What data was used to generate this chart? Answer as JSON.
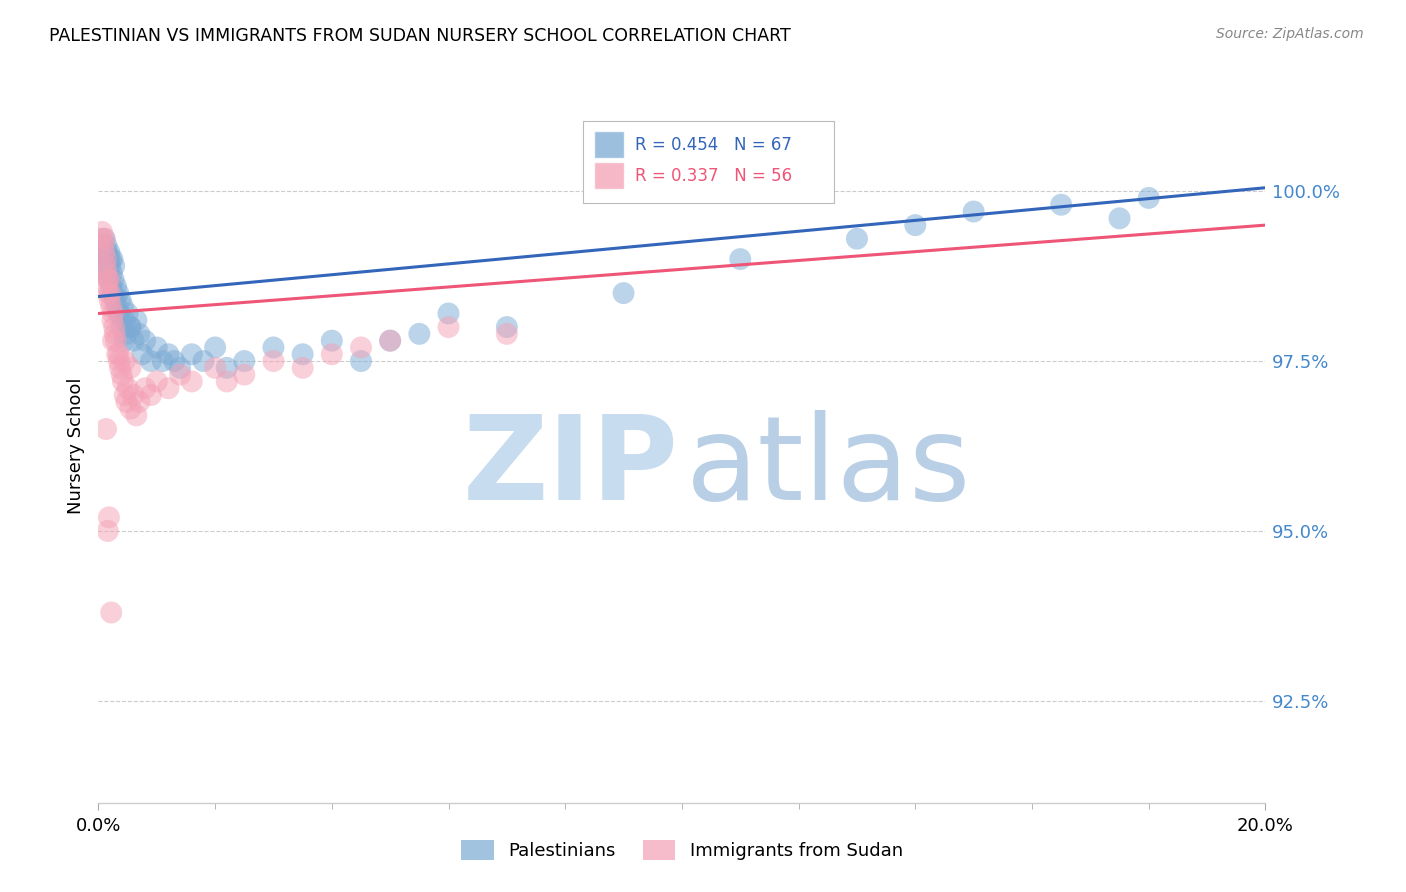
{
  "title": "PALESTINIAN VS IMMIGRANTS FROM SUDAN NURSERY SCHOOL CORRELATION CHART",
  "source": "Source: ZipAtlas.com",
  "ylabel": "Nursery School",
  "yticks": [
    92.5,
    95.0,
    97.5,
    100.0
  ],
  "ytick_labels": [
    "92.5%",
    "95.0%",
    "97.5%",
    "100.0%"
  ],
  "xlim": [
    0.0,
    20.0
  ],
  "ylim": [
    91.0,
    101.5
  ],
  "blue_R": 0.454,
  "blue_N": 67,
  "pink_R": 0.337,
  "pink_N": 56,
  "blue_color": "#7BAAD4",
  "pink_color": "#F4A0B5",
  "blue_line_color": "#3366BB",
  "pink_line_color": "#EE5577",
  "legend_label_blue": "Palestinians",
  "legend_label_pink": "Immigrants from Sudan",
  "blue_x": [
    0.05,
    0.08,
    0.1,
    0.11,
    0.12,
    0.13,
    0.14,
    0.15,
    0.16,
    0.17,
    0.18,
    0.19,
    0.2,
    0.21,
    0.22,
    0.23,
    0.24,
    0.25,
    0.26,
    0.27,
    0.28,
    0.3,
    0.32,
    0.34,
    0.36,
    0.38,
    0.4,
    0.42,
    0.45,
    0.48,
    0.5,
    0.55,
    0.6,
    0.65,
    0.7,
    0.75,
    0.8,
    0.9,
    1.0,
    1.1,
    1.2,
    1.4,
    1.6,
    1.8,
    2.0,
    2.2,
    2.5,
    3.0,
    3.5,
    4.0,
    4.5,
    5.0,
    5.5,
    7.0,
    9.0,
    11.0,
    13.0,
    14.0,
    15.0,
    16.5,
    17.5,
    18.0,
    1.3,
    0.35,
    0.45,
    0.55,
    6.0
  ],
  "blue_y": [
    99.2,
    99.0,
    99.3,
    99.1,
    98.9,
    99.0,
    99.2,
    99.1,
    98.8,
    99.0,
    98.7,
    99.1,
    98.9,
    99.0,
    98.6,
    98.8,
    99.0,
    98.5,
    98.7,
    98.9,
    98.4,
    98.6,
    98.3,
    98.5,
    98.2,
    98.4,
    98.0,
    98.3,
    98.1,
    97.9,
    98.2,
    98.0,
    97.8,
    98.1,
    97.9,
    97.6,
    97.8,
    97.5,
    97.7,
    97.5,
    97.6,
    97.4,
    97.6,
    97.5,
    97.7,
    97.4,
    97.5,
    97.7,
    97.6,
    97.8,
    97.5,
    97.8,
    97.9,
    98.0,
    98.5,
    99.0,
    99.3,
    99.5,
    99.7,
    99.8,
    99.6,
    99.9,
    97.5,
    98.2,
    97.8,
    98.0,
    98.2
  ],
  "pink_x": [
    0.04,
    0.06,
    0.08,
    0.1,
    0.11,
    0.12,
    0.13,
    0.14,
    0.15,
    0.16,
    0.17,
    0.18,
    0.19,
    0.2,
    0.22,
    0.24,
    0.25,
    0.27,
    0.28,
    0.3,
    0.32,
    0.35,
    0.37,
    0.4,
    0.42,
    0.45,
    0.48,
    0.5,
    0.55,
    0.6,
    0.65,
    0.7,
    0.8,
    0.9,
    1.0,
    1.2,
    1.4,
    1.6,
    2.0,
    2.5,
    3.0,
    3.5,
    4.0,
    4.5,
    5.0,
    6.0,
    7.0,
    0.25,
    0.35,
    0.45,
    0.55,
    2.2,
    0.13,
    0.16,
    0.18,
    0.22
  ],
  "pink_y": [
    99.3,
    99.4,
    99.2,
    99.1,
    99.3,
    98.9,
    99.0,
    98.8,
    98.6,
    98.7,
    98.5,
    98.7,
    98.4,
    98.5,
    98.3,
    98.1,
    98.2,
    98.0,
    97.9,
    97.8,
    97.6,
    97.5,
    97.4,
    97.3,
    97.2,
    97.0,
    96.9,
    97.1,
    96.8,
    97.0,
    96.7,
    96.9,
    97.1,
    97.0,
    97.2,
    97.1,
    97.3,
    97.2,
    97.4,
    97.3,
    97.5,
    97.4,
    97.6,
    97.7,
    97.8,
    98.0,
    97.9,
    97.8,
    97.6,
    97.5,
    97.4,
    97.2,
    96.5,
    95.0,
    95.2,
    93.8
  ],
  "blue_trend_x": [
    0.0,
    20.0
  ],
  "blue_trend_y": [
    98.45,
    100.05
  ],
  "pink_trend_x": [
    0.0,
    20.0
  ],
  "pink_trend_y": [
    98.2,
    99.5
  ]
}
